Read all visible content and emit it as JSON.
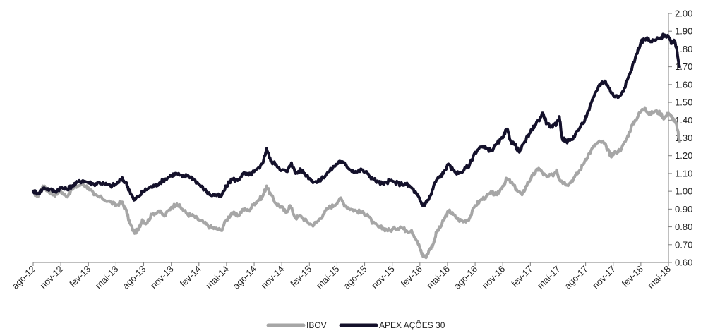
{
  "chart_data": {
    "type": "line",
    "title": "",
    "xlabel": "",
    "ylabel": "",
    "ylim": [
      0.6,
      2.0
    ],
    "yticks": [
      0.6,
      0.7,
      0.8,
      0.9,
      1.0,
      1.1,
      1.2,
      1.3,
      1.4,
      1.5,
      1.6,
      1.7,
      1.8,
      1.9,
      2.0
    ],
    "ytick_labels": [
      "0.60",
      "0.70",
      "0.80",
      "0.90",
      "1.00",
      "1.10",
      "1.20",
      "1.30",
      "1.40",
      "1.50",
      "1.60",
      "1.70",
      "1.80",
      "1.90",
      "2.00"
    ],
    "categories": [
      "ago-12",
      "nov-12",
      "fev-13",
      "mai-13",
      "ago-13",
      "nov-13",
      "fev-14",
      "mai-14",
      "ago-14",
      "nov-14",
      "fev-15",
      "mai-15",
      "ago-15",
      "nov-15",
      "fev-16",
      "mai-16",
      "ago-16",
      "nov-16",
      "fev-17",
      "mai-17",
      "ago-17",
      "nov-17",
      "fev-18",
      "mai-18"
    ],
    "grid": false,
    "legend_position": "bottom-center",
    "series": [
      {
        "name": "IBOV",
        "color": "#a6a6a6",
        "values": [
          [
            0.0,
            1.0
          ],
          [
            0.15,
            0.97
          ],
          [
            0.35,
            1.03
          ],
          [
            0.55,
            1.0
          ],
          [
            0.75,
            0.98
          ],
          [
            1.0,
            1.0
          ],
          [
            1.2,
            0.97
          ],
          [
            1.4,
            1.01
          ],
          [
            1.6,
            1.03
          ],
          [
            1.8,
            1.04
          ],
          [
            2.0,
            1.02
          ],
          [
            2.2,
            0.98
          ],
          [
            2.5,
            0.96
          ],
          [
            2.8,
            0.94
          ],
          [
            3.0,
            0.92
          ],
          [
            3.2,
            0.94
          ],
          [
            3.35,
            0.9
          ],
          [
            3.5,
            0.82
          ],
          [
            3.65,
            0.77
          ],
          [
            3.8,
            0.78
          ],
          [
            3.95,
            0.84
          ],
          [
            4.1,
            0.82
          ],
          [
            4.3,
            0.87
          ],
          [
            4.55,
            0.89
          ],
          [
            4.75,
            0.86
          ],
          [
            5.0,
            0.91
          ],
          [
            5.2,
            0.93
          ],
          [
            5.4,
            0.9
          ],
          [
            5.6,
            0.87
          ],
          [
            5.8,
            0.86
          ],
          [
            6.0,
            0.84
          ],
          [
            6.2,
            0.82
          ],
          [
            6.4,
            0.8
          ],
          [
            6.6,
            0.79
          ],
          [
            6.8,
            0.78
          ],
          [
            7.0,
            0.84
          ],
          [
            7.2,
            0.88
          ],
          [
            7.4,
            0.86
          ],
          [
            7.6,
            0.9
          ],
          [
            7.8,
            0.89
          ],
          [
            8.0,
            0.93
          ],
          [
            8.15,
            0.95
          ],
          [
            8.3,
            0.97
          ],
          [
            8.45,
            1.03
          ],
          [
            8.6,
            0.98
          ],
          [
            8.8,
            0.93
          ],
          [
            9.0,
            0.91
          ],
          [
            9.15,
            0.88
          ],
          [
            9.3,
            0.92
          ],
          [
            9.5,
            0.85
          ],
          [
            9.7,
            0.86
          ],
          [
            9.9,
            0.83
          ],
          [
            10.1,
            0.81
          ],
          [
            10.3,
            0.83
          ],
          [
            10.5,
            0.87
          ],
          [
            10.7,
            0.91
          ],
          [
            10.9,
            0.92
          ],
          [
            11.1,
            0.96
          ],
          [
            11.3,
            0.92
          ],
          [
            11.5,
            0.9
          ],
          [
            11.7,
            0.89
          ],
          [
            11.9,
            0.88
          ],
          [
            12.1,
            0.87
          ],
          [
            12.3,
            0.82
          ],
          [
            12.5,
            0.8
          ],
          [
            12.7,
            0.79
          ],
          [
            12.9,
            0.78
          ],
          [
            13.1,
            0.79
          ],
          [
            13.3,
            0.8
          ],
          [
            13.5,
            0.78
          ],
          [
            13.7,
            0.78
          ],
          [
            13.9,
            0.72
          ],
          [
            14.0,
            0.68
          ],
          [
            14.1,
            0.64
          ],
          [
            14.2,
            0.63
          ],
          [
            14.35,
            0.67
          ],
          [
            14.5,
            0.71
          ],
          [
            14.6,
            0.77
          ],
          [
            14.75,
            0.8
          ],
          [
            14.9,
            0.85
          ],
          [
            15.05,
            0.89
          ],
          [
            15.2,
            0.87
          ],
          [
            15.4,
            0.84
          ],
          [
            15.6,
            0.83
          ],
          [
            15.8,
            0.85
          ],
          [
            16.0,
            0.92
          ],
          [
            16.2,
            0.95
          ],
          [
            16.4,
            0.97
          ],
          [
            16.6,
            0.99
          ],
          [
            16.8,
            0.98
          ],
          [
            17.0,
            1.03
          ],
          [
            17.15,
            1.07
          ],
          [
            17.3,
            1.05
          ],
          [
            17.5,
            1.01
          ],
          [
            17.7,
            0.98
          ],
          [
            17.85,
            1.03
          ],
          [
            18.0,
            1.07
          ],
          [
            18.15,
            1.1
          ],
          [
            18.3,
            1.13
          ],
          [
            18.45,
            1.1
          ],
          [
            18.6,
            1.08
          ],
          [
            18.8,
            1.09
          ],
          [
            18.95,
            1.12
          ],
          [
            19.05,
            1.07
          ],
          [
            19.2,
            1.05
          ],
          [
            19.4,
            1.04
          ],
          [
            19.6,
            1.08
          ],
          [
            19.8,
            1.12
          ],
          [
            20.0,
            1.18
          ],
          [
            20.2,
            1.23
          ],
          [
            20.4,
            1.27
          ],
          [
            20.6,
            1.28
          ],
          [
            20.75,
            1.25
          ],
          [
            20.9,
            1.2
          ],
          [
            21.1,
            1.22
          ],
          [
            21.3,
            1.24
          ],
          [
            21.5,
            1.3
          ],
          [
            21.65,
            1.36
          ],
          [
            21.8,
            1.4
          ],
          [
            22.0,
            1.45
          ],
          [
            22.15,
            1.47
          ],
          [
            22.3,
            1.43
          ],
          [
            22.5,
            1.45
          ],
          [
            22.7,
            1.44
          ],
          [
            22.85,
            1.41
          ],
          [
            23.0,
            1.44
          ],
          [
            23.1,
            1.42
          ],
          [
            23.2,
            1.4
          ],
          [
            23.3,
            1.37
          ],
          [
            23.4,
            1.28
          ]
        ]
      },
      {
        "name": "APEX AÇÕES 30",
        "color": "#14112b",
        "values": [
          [
            0.0,
            1.0
          ],
          [
            0.2,
            0.99
          ],
          [
            0.4,
            1.02
          ],
          [
            0.6,
            1.01
          ],
          [
            0.8,
            1.0
          ],
          [
            1.0,
            1.02
          ],
          [
            1.2,
            1.01
          ],
          [
            1.4,
            1.03
          ],
          [
            1.6,
            1.05
          ],
          [
            1.8,
            1.06
          ],
          [
            2.0,
            1.05
          ],
          [
            2.2,
            1.04
          ],
          [
            2.4,
            1.05
          ],
          [
            2.6,
            1.04
          ],
          [
            2.8,
            1.03
          ],
          [
            3.0,
            1.04
          ],
          [
            3.2,
            1.07
          ],
          [
            3.35,
            1.05
          ],
          [
            3.5,
            1.0
          ],
          [
            3.65,
            0.95
          ],
          [
            3.8,
            0.97
          ],
          [
            4.0,
            1.0
          ],
          [
            4.2,
            1.02
          ],
          [
            4.4,
            1.03
          ],
          [
            4.6,
            1.05
          ],
          [
            4.8,
            1.07
          ],
          [
            5.0,
            1.09
          ],
          [
            5.2,
            1.1
          ],
          [
            5.4,
            1.08
          ],
          [
            5.6,
            1.09
          ],
          [
            5.8,
            1.07
          ],
          [
            6.0,
            1.04
          ],
          [
            6.2,
            1.01
          ],
          [
            6.4,
            0.98
          ],
          [
            6.6,
            0.98
          ],
          [
            6.8,
            0.97
          ],
          [
            7.0,
            1.03
          ],
          [
            7.2,
            1.07
          ],
          [
            7.4,
            1.06
          ],
          [
            7.6,
            1.1
          ],
          [
            7.8,
            1.09
          ],
          [
            8.0,
            1.11
          ],
          [
            8.2,
            1.13
          ],
          [
            8.35,
            1.18
          ],
          [
            8.45,
            1.24
          ],
          [
            8.6,
            1.17
          ],
          [
            8.8,
            1.15
          ],
          [
            9.0,
            1.12
          ],
          [
            9.2,
            1.11
          ],
          [
            9.35,
            1.16
          ],
          [
            9.5,
            1.1
          ],
          [
            9.7,
            1.12
          ],
          [
            9.9,
            1.09
          ],
          [
            10.1,
            1.06
          ],
          [
            10.3,
            1.05
          ],
          [
            10.5,
            1.08
          ],
          [
            10.7,
            1.11
          ],
          [
            10.9,
            1.14
          ],
          [
            11.1,
            1.17
          ],
          [
            11.3,
            1.15
          ],
          [
            11.5,
            1.12
          ],
          [
            11.7,
            1.11
          ],
          [
            11.9,
            1.12
          ],
          [
            12.1,
            1.1
          ],
          [
            12.3,
            1.07
          ],
          [
            12.5,
            1.05
          ],
          [
            12.7,
            1.04
          ],
          [
            12.9,
            1.06
          ],
          [
            13.1,
            1.05
          ],
          [
            13.3,
            1.04
          ],
          [
            13.5,
            1.04
          ],
          [
            13.7,
            1.02
          ],
          [
            13.9,
            0.98
          ],
          [
            14.0,
            0.95
          ],
          [
            14.1,
            0.92
          ],
          [
            14.25,
            0.94
          ],
          [
            14.4,
            0.98
          ],
          [
            14.55,
            1.05
          ],
          [
            14.7,
            1.08
          ],
          [
            14.85,
            1.1
          ],
          [
            15.0,
            1.15
          ],
          [
            15.2,
            1.12
          ],
          [
            15.4,
            1.1
          ],
          [
            15.6,
            1.12
          ],
          [
            15.8,
            1.15
          ],
          [
            16.0,
            1.22
          ],
          [
            16.2,
            1.25
          ],
          [
            16.4,
            1.24
          ],
          [
            16.6,
            1.23
          ],
          [
            16.8,
            1.27
          ],
          [
            17.0,
            1.3
          ],
          [
            17.15,
            1.35
          ],
          [
            17.3,
            1.28
          ],
          [
            17.45,
            1.26
          ],
          [
            17.6,
            1.22
          ],
          [
            17.8,
            1.28
          ],
          [
            18.0,
            1.33
          ],
          [
            18.15,
            1.37
          ],
          [
            18.3,
            1.4
          ],
          [
            18.45,
            1.44
          ],
          [
            18.6,
            1.38
          ],
          [
            18.8,
            1.36
          ],
          [
            18.95,
            1.38
          ],
          [
            19.05,
            1.42
          ],
          [
            19.15,
            1.3
          ],
          [
            19.3,
            1.28
          ],
          [
            19.5,
            1.29
          ],
          [
            19.7,
            1.34
          ],
          [
            19.9,
            1.38
          ],
          [
            20.1,
            1.45
          ],
          [
            20.3,
            1.53
          ],
          [
            20.5,
            1.6
          ],
          [
            20.7,
            1.62
          ],
          [
            20.85,
            1.58
          ],
          [
            21.0,
            1.54
          ],
          [
            21.2,
            1.53
          ],
          [
            21.4,
            1.58
          ],
          [
            21.6,
            1.66
          ],
          [
            21.8,
            1.75
          ],
          [
            22.0,
            1.84
          ],
          [
            22.2,
            1.86
          ],
          [
            22.35,
            1.84
          ],
          [
            22.5,
            1.85
          ],
          [
            22.7,
            1.86
          ],
          [
            22.85,
            1.88
          ],
          [
            23.0,
            1.87
          ],
          [
            23.1,
            1.83
          ],
          [
            23.2,
            1.85
          ],
          [
            23.3,
            1.8
          ],
          [
            23.4,
            1.7
          ]
        ]
      }
    ]
  }
}
